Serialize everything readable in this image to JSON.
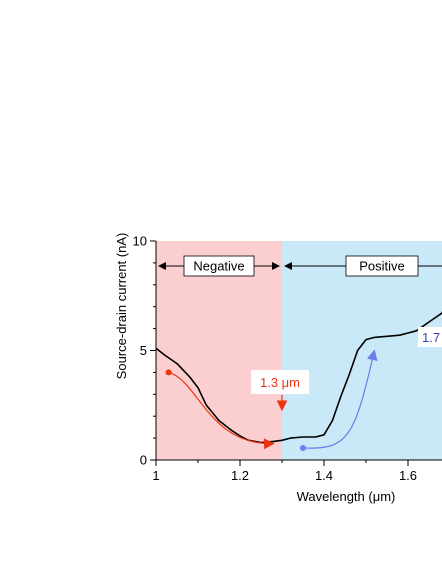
{
  "chart_data": {
    "type": "line",
    "title": "",
    "xlabel": "Wavelength (μm)",
    "ylabel": "Source-drain current (nA)",
    "xlim": [
      1.0,
      1.72
    ],
    "ylim": [
      0,
      10
    ],
    "xticks": [
      {
        "value": 1.0,
        "label": "1"
      },
      {
        "value": 1.2,
        "label": "1.2"
      },
      {
        "value": 1.4,
        "label": "1.4"
      },
      {
        "value": 1.6,
        "label": "1.6"
      }
    ],
    "yticks": [
      {
        "value": 0,
        "label": "0"
      },
      {
        "value": 5,
        "label": "5"
      },
      {
        "value": 10,
        "label": "10"
      }
    ],
    "grid": false,
    "regions": [
      {
        "name": "Negative",
        "from": 1.0,
        "to": 1.3,
        "color": "#fbcfcf"
      },
      {
        "name": "Positive",
        "from": 1.3,
        "to": 1.72,
        "color": "#c9e9f9"
      }
    ],
    "series": [
      {
        "color": "#000000",
        "x": [
          1.0,
          1.02,
          1.05,
          1.08,
          1.1,
          1.12,
          1.15,
          1.18,
          1.2,
          1.22,
          1.25,
          1.28,
          1.3,
          1.32,
          1.35,
          1.38,
          1.4,
          1.42,
          1.44,
          1.46,
          1.48,
          1.5,
          1.52,
          1.55,
          1.58,
          1.6,
          1.62,
          1.65,
          1.68,
          1.7,
          1.72
        ],
        "y": [
          5.1,
          4.8,
          4.4,
          3.8,
          3.3,
          2.5,
          1.8,
          1.35,
          1.1,
          0.9,
          0.8,
          0.85,
          0.9,
          1.0,
          1.05,
          1.05,
          1.15,
          1.8,
          2.9,
          3.9,
          5.0,
          5.5,
          5.6,
          5.65,
          5.7,
          5.8,
          5.9,
          6.3,
          6.7,
          7.2,
          7.6
        ]
      }
    ],
    "annotations": [
      {
        "text": "1.3 μm",
        "color": "#ee3311",
        "x": 1.3,
        "y": 0.9
      },
      {
        "text": "1.7",
        "color": "#3344aa",
        "x": 1.7,
        "y": 5.7
      }
    ],
    "arrows": [
      {
        "color": "#ee3311",
        "from": [
          1.03,
          4.0
        ],
        "to": [
          1.28,
          0.75
        ]
      },
      {
        "color": "#6a7de8",
        "from": [
          1.35,
          0.55
        ],
        "to": [
          1.52,
          5.0
        ]
      }
    ]
  }
}
